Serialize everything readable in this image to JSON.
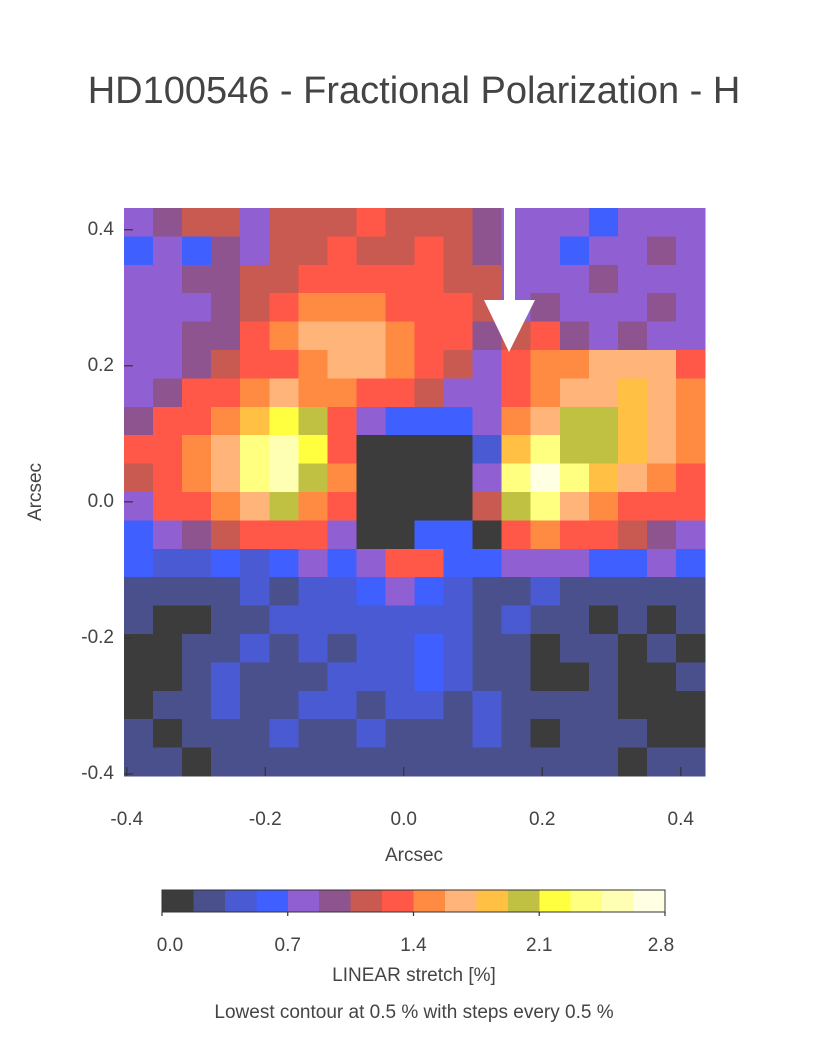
{
  "chart_data": {
    "type": "heatmap",
    "title": "HD100546 - Fractional Polarization - H",
    "xlabel": "Arcsec",
    "ylabel": "Arcsec",
    "xlim": [
      -0.404,
      0.435
    ],
    "ylim": [
      -0.403,
      0.432
    ],
    "xticks": [
      -0.4,
      -0.2,
      {
        "value": 0,
        "label": "0.0"
      },
      0.2,
      0.4
    ],
    "yticks": [
      -0.4,
      -0.2,
      {
        "value": 0,
        "label": "0.0"
      },
      0.2,
      0.4
    ],
    "z": [
      [
        0.8,
        0.95,
        1.1,
        1.1,
        0.8,
        1.1,
        1.15,
        1.1,
        1.25,
        1.1,
        1.1,
        1.1,
        1.0,
        0.8,
        0.8,
        0.8,
        0.6,
        0.8,
        0.8,
        0.8
      ],
      [
        0.6,
        0.8,
        0.6,
        0.95,
        0.8,
        1.1,
        1.15,
        1.25,
        1.1,
        1.15,
        1.25,
        1.1,
        0.95,
        0.8,
        0.8,
        0.6,
        0.8,
        0.8,
        0.95,
        0.8
      ],
      [
        0.8,
        0.8,
        0.95,
        0.95,
        1.1,
        1.1,
        1.25,
        1.3,
        1.3,
        1.25,
        1.3,
        1.1,
        1.1,
        0.8,
        0.8,
        0.8,
        0.95,
        0.8,
        0.8,
        0.8
      ],
      [
        0.8,
        0.8,
        0.8,
        0.95,
        1.1,
        1.3,
        1.45,
        1.5,
        1.45,
        1.3,
        1.3,
        1.25,
        1.1,
        0.8,
        0.95,
        0.8,
        0.8,
        0.8,
        0.95,
        0.8
      ],
      [
        0.8,
        0.8,
        0.95,
        0.95,
        1.3,
        1.5,
        1.65,
        1.7,
        1.6,
        1.45,
        1.3,
        1.25,
        0.95,
        1.15,
        1.3,
        0.95,
        0.8,
        0.95,
        0.8,
        0.8
      ],
      [
        0.8,
        0.8,
        0.95,
        1.1,
        1.3,
        1.3,
        1.5,
        1.7,
        1.7,
        1.5,
        1.3,
        1.1,
        0.8,
        1.3,
        1.5,
        1.5,
        1.65,
        1.7,
        1.7,
        1.3
      ],
      [
        0.8,
        0.95,
        1.3,
        1.3,
        1.5,
        1.7,
        1.5,
        1.45,
        1.3,
        1.25,
        1.1,
        0.8,
        0.8,
        1.3,
        1.5,
        1.7,
        1.7,
        1.85,
        1.7,
        1.5
      ],
      [
        0.95,
        1.25,
        1.3,
        1.5,
        1.85,
        2.2,
        2.0,
        1.3,
        0.75,
        0.6,
        0.6,
        0.6,
        0.8,
        1.5,
        1.7,
        2.0,
        2.0,
        1.9,
        1.7,
        1.5
      ],
      [
        1.25,
        1.3,
        1.5,
        1.7,
        2.4,
        2.6,
        2.2,
        1.3,
        0.0,
        0.0,
        0.0,
        0.0,
        0.5,
        1.9,
        2.4,
        2.0,
        2.0,
        1.9,
        1.7,
        1.5
      ],
      [
        1.1,
        1.3,
        1.5,
        1.7,
        2.3,
        2.6,
        2.0,
        1.5,
        0.0,
        0.0,
        0.0,
        0.0,
        0.8,
        2.4,
        2.75,
        2.3,
        1.9,
        1.7,
        1.5,
        1.3
      ],
      [
        0.8,
        1.25,
        1.3,
        1.5,
        1.7,
        2.0,
        1.5,
        1.3,
        0.0,
        0.0,
        0.0,
        0.1,
        1.1,
        2.0,
        2.3,
        1.7,
        1.5,
        1.3,
        1.3,
        1.25
      ],
      [
        0.6,
        0.8,
        0.95,
        1.1,
        1.3,
        1.3,
        1.25,
        0.8,
        0.0,
        0.0,
        0.6,
        0.6,
        0.1,
        1.3,
        1.5,
        1.3,
        1.25,
        1.1,
        0.95,
        0.8
      ],
      [
        0.6,
        0.5,
        0.5,
        0.55,
        0.5,
        0.6,
        0.8,
        0.6,
        0.8,
        1.25,
        1.25,
        0.6,
        0.6,
        0.8,
        0.8,
        0.8,
        0.6,
        0.6,
        0.8,
        0.6
      ],
      [
        0.3,
        0.3,
        0.3,
        0.3,
        0.45,
        0.3,
        0.45,
        0.45,
        0.6,
        0.75,
        0.6,
        0.45,
        0.3,
        0.3,
        0.45,
        0.3,
        0.3,
        0.3,
        0.3,
        0.3
      ],
      [
        0.3,
        0.1,
        0.1,
        0.3,
        0.3,
        0.45,
        0.45,
        0.45,
        0.45,
        0.45,
        0.45,
        0.45,
        0.3,
        0.45,
        0.3,
        0.3,
        0.1,
        0.3,
        0.1,
        0.3
      ],
      [
        0.1,
        0.1,
        0.3,
        0.3,
        0.45,
        0.3,
        0.45,
        0.3,
        0.45,
        0.45,
        0.6,
        0.45,
        0.3,
        0.3,
        0.1,
        0.3,
        0.3,
        0.1,
        0.3,
        0.1
      ],
      [
        0.1,
        0.1,
        0.3,
        0.45,
        0.3,
        0.3,
        0.3,
        0.45,
        0.45,
        0.45,
        0.6,
        0.45,
        0.3,
        0.3,
        0.1,
        0.1,
        0.3,
        0.1,
        0.1,
        0.3
      ],
      [
        0.1,
        0.3,
        0.3,
        0.45,
        0.3,
        0.3,
        0.45,
        0.45,
        0.3,
        0.45,
        0.45,
        0.3,
        0.45,
        0.3,
        0.3,
        0.3,
        0.3,
        0.1,
        0.1,
        0.1
      ],
      [
        0.3,
        0.1,
        0.3,
        0.3,
        0.3,
        0.45,
        0.3,
        0.3,
        0.45,
        0.3,
        0.3,
        0.3,
        0.45,
        0.3,
        0.1,
        0.3,
        0.3,
        0.3,
        0.1,
        0.1
      ],
      [
        0.3,
        0.3,
        0.1,
        0.3,
        0.3,
        0.3,
        0.3,
        0.3,
        0.3,
        0.3,
        0.3,
        0.3,
        0.3,
        0.3,
        0.3,
        0.3,
        0.3,
        0.1,
        0.3,
        0.3
      ]
    ],
    "colorbar": {
      "range": [
        0,
        2.8
      ],
      "ticks": [
        {
          "value": 0,
          "label": "0.0"
        },
        0.7,
        1.4,
        2.1,
        2.8
      ],
      "colors": [
        "#3c3c3c",
        "#4a508c",
        "#4a5ad2",
        "#3f5fff",
        "#9060d2",
        "#8e5490",
        "#c85a52",
        "#ff5848",
        "#ff8a42",
        "#ffb47a",
        "#ffc044",
        "#c0c042",
        "#ffff40",
        "#ffff80",
        "#ffffb4",
        "#ffffe4"
      ],
      "label": "LINEAR stretch [%]",
      "note": "Lowest contour at 0.5 % with steps every 0.5 %"
    }
  }
}
